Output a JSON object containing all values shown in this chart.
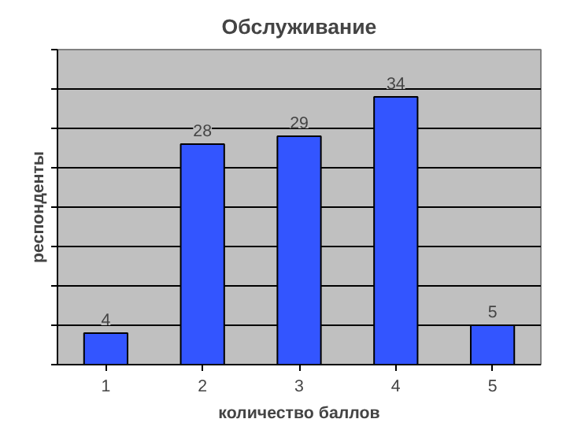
{
  "chart_data": {
    "type": "bar",
    "title": "Обслуживание",
    "xlabel": "количество баллов",
    "ylabel": "респонденты",
    "categories": [
      "1",
      "2",
      "3",
      "4",
      "5"
    ],
    "values": [
      4,
      28,
      29,
      34,
      5
    ],
    "color": "#3355ff",
    "ylim": [
      0,
      40
    ],
    "yticks": [
      {
        "value": 0,
        "label": null
      },
      {
        "value": 5,
        "label": null
      },
      {
        "value": 10,
        "label": null
      },
      {
        "value": 15,
        "label": null
      },
      {
        "value": 20,
        "label": null
      },
      {
        "value": 25,
        "label": null
      },
      {
        "value": 30,
        "label": null
      },
      {
        "value": 35,
        "label": null
      },
      {
        "value": 40,
        "label": null
      }
    ],
    "grid": "y",
    "data_labels": true
  }
}
